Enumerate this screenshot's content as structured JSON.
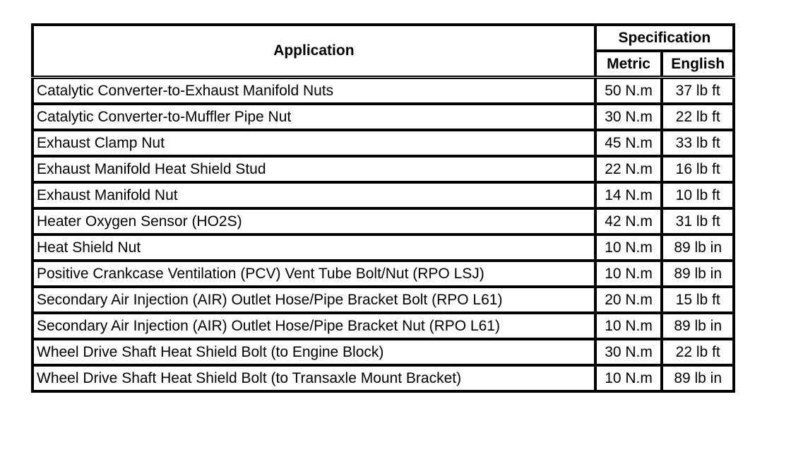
{
  "header": {
    "application": "Application",
    "specification": "Specification",
    "metric": "Metric",
    "english": "English"
  },
  "rows": [
    {
      "application": "Catalytic Converter-to-Exhaust Manifold Nuts",
      "metric": "50 N.m",
      "english": "37 lb ft"
    },
    {
      "application": "Catalytic Converter-to-Muffler Pipe Nut",
      "metric": "30 N.m",
      "english": "22 lb ft"
    },
    {
      "application": "Exhaust Clamp Nut",
      "metric": "45 N.m",
      "english": "33 lb ft"
    },
    {
      "application": "Exhaust Manifold Heat Shield Stud",
      "metric": "22 N.m",
      "english": "16 lb ft"
    },
    {
      "application": "Exhaust Manifold Nut",
      "metric": "14 N.m",
      "english": "10 lb ft"
    },
    {
      "application": "Heater Oxygen Sensor (HO2S)",
      "metric": "42 N.m",
      "english": "31 lb ft"
    },
    {
      "application": "Heat Shield Nut",
      "metric": "10 N.m",
      "english": "89 lb in"
    },
    {
      "application": "Positive Crankcase Ventilation (PCV) Vent Tube Bolt/Nut (RPO LSJ)",
      "metric": "10 N.m",
      "english": "89 lb in"
    },
    {
      "application": "Secondary Air Injection (AIR) Outlet Hose/Pipe Bracket Bolt (RPO L61)",
      "metric": "20 N.m",
      "english": "15 lb ft"
    },
    {
      "application": "Secondary Air Injection (AIR) Outlet Hose/Pipe Bracket Nut (RPO L61)",
      "metric": "10 N.m",
      "english": "89 lb in"
    },
    {
      "application": "Wheel Drive Shaft Heat Shield Bolt (to Engine Block)",
      "metric": "30 N.m",
      "english": "22 lb ft"
    },
    {
      "application": "Wheel Drive Shaft Heat Shield Bolt (to Transaxle Mount Bracket)",
      "metric": "10 N.m",
      "english": "89 lb in"
    }
  ]
}
